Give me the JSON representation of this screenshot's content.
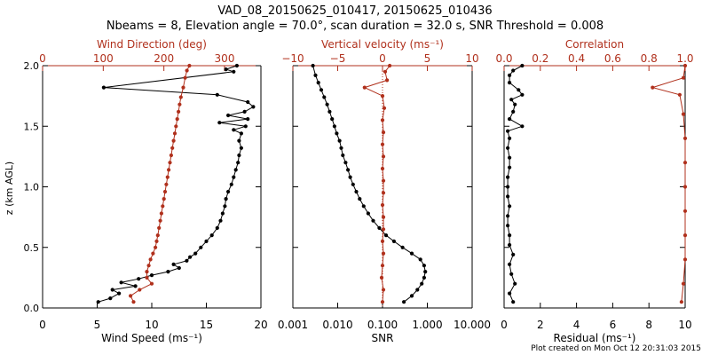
{
  "header": {
    "title_line1": "VAD_08_20150625_010417, 20150625_010436",
    "title_line2": "Nbeams = 8, Elevation angle = 70.0°, scan duration = 32.0 s, SNR Threshold = 0.008"
  },
  "footer": {
    "created": "Plot created on Mon Oct 12 20:31:03 2015"
  },
  "colors": {
    "primary": "#000000",
    "secondary": "#b0301c"
  },
  "y_axis": {
    "label": "z (km AGL)",
    "ticks": [
      "0.0",
      "0.5",
      "1.0",
      "1.5",
      "2.0"
    ],
    "range": [
      0,
      2.0
    ]
  },
  "chart_data": [
    {
      "type": "line",
      "title": "",
      "xlabel": "Wind Speed (ms⁻¹)",
      "xlim": [
        0,
        20
      ],
      "xticks": [
        0,
        5,
        10,
        15,
        20
      ],
      "xtick_labels": [
        "0",
        "5",
        "10",
        "15",
        "20"
      ],
      "top_label": "Wind Direction (deg)",
      "top_lim": [
        0,
        360
      ],
      "top_ticks": [
        0,
        100,
        200,
        300
      ],
      "top_tick_labels": [
        "0",
        "100",
        "200",
        "300"
      ],
      "series": [
        {
          "name": "",
          "axis": "bottom",
          "color": "#000000",
          "points": [
            [
              5.1,
              0.05
            ],
            [
              6.2,
              0.08
            ],
            [
              7.0,
              0.12
            ],
            [
              6.4,
              0.15
            ],
            [
              8.5,
              0.18
            ],
            [
              7.2,
              0.21
            ],
            [
              8.8,
              0.24
            ],
            [
              10.0,
              0.27
            ],
            [
              11.5,
              0.3
            ],
            [
              12.5,
              0.33
            ],
            [
              12.0,
              0.36
            ],
            [
              13.2,
              0.39
            ],
            [
              13.5,
              0.42
            ],
            [
              14.0,
              0.45
            ],
            [
              14.5,
              0.5
            ],
            [
              15.0,
              0.55
            ],
            [
              15.5,
              0.6
            ],
            [
              16.0,
              0.66
            ],
            [
              16.3,
              0.72
            ],
            [
              16.5,
              0.78
            ],
            [
              16.7,
              0.84
            ],
            [
              16.8,
              0.9
            ],
            [
              17.0,
              0.96
            ],
            [
              17.3,
              1.02
            ],
            [
              17.5,
              1.08
            ],
            [
              17.7,
              1.14
            ],
            [
              17.9,
              1.2
            ],
            [
              18.0,
              1.26
            ],
            [
              18.2,
              1.32
            ],
            [
              18.0,
              1.38
            ],
            [
              18.2,
              1.44
            ],
            [
              17.5,
              1.47
            ],
            [
              18.6,
              1.5
            ],
            [
              16.2,
              1.53
            ],
            [
              18.8,
              1.56
            ],
            [
              17.0,
              1.59
            ],
            [
              18.5,
              1.62
            ],
            [
              19.3,
              1.66
            ],
            [
              18.8,
              1.7
            ],
            [
              16.0,
              1.76
            ],
            [
              5.6,
              1.82
            ],
            [
              17.5,
              1.95
            ],
            [
              16.8,
              1.97
            ],
            [
              17.8,
              2.0
            ]
          ]
        },
        {
          "name": "",
          "axis": "top",
          "color": "#b0301c",
          "points": [
            [
              150,
              0.05
            ],
            [
              145,
              0.1
            ],
            [
              160,
              0.15
            ],
            [
              180,
              0.2
            ],
            [
              172,
              0.25
            ],
            [
              172,
              0.3
            ],
            [
              175,
              0.35
            ],
            [
              178,
              0.4
            ],
            [
              182,
              0.45
            ],
            [
              186,
              0.5
            ],
            [
              188,
              0.55
            ],
            [
              190,
              0.6
            ],
            [
              192,
              0.66
            ],
            [
              194,
              0.72
            ],
            [
              196,
              0.78
            ],
            [
              198,
              0.84
            ],
            [
              200,
              0.9
            ],
            [
              202,
              0.96
            ],
            [
              204,
              1.02
            ],
            [
              206,
              1.08
            ],
            [
              208,
              1.14
            ],
            [
              210,
              1.2
            ],
            [
              212,
              1.26
            ],
            [
              214,
              1.32
            ],
            [
              216,
              1.38
            ],
            [
              218,
              1.44
            ],
            [
              220,
              1.5
            ],
            [
              222,
              1.56
            ],
            [
              224,
              1.62
            ],
            [
              226,
              1.68
            ],
            [
              228,
              1.74
            ],
            [
              232,
              1.82
            ],
            [
              235,
              1.9
            ],
            [
              238,
              1.96
            ],
            [
              242,
              2.0
            ]
          ]
        }
      ]
    },
    {
      "type": "line",
      "title": "",
      "xlabel": "SNR",
      "xscale": "log",
      "xlim": [
        0.001,
        10
      ],
      "xticks": [
        0.001,
        0.01,
        0.1,
        1,
        10
      ],
      "xtick_labels": [
        "0.001",
        "0.010",
        "0.100",
        "1.000",
        "10.000"
      ],
      "top_label": "Vertical velocity (ms⁻¹)",
      "top_lim": [
        -10,
        10
      ],
      "top_ticks": [
        -10,
        -5,
        0,
        5,
        10
      ],
      "top_tick_labels": [
        "−10",
        "−5",
        "0",
        "5",
        "10"
      ],
      "series": [
        {
          "name": "",
          "axis": "bottom",
          "color": "#000000",
          "points": [
            [
              0.3,
              0.05
            ],
            [
              0.45,
              0.1
            ],
            [
              0.6,
              0.15
            ],
            [
              0.75,
              0.2
            ],
            [
              0.85,
              0.25
            ],
            [
              0.9,
              0.3
            ],
            [
              0.85,
              0.35
            ],
            [
              0.7,
              0.4
            ],
            [
              0.45,
              0.45
            ],
            [
              0.28,
              0.5
            ],
            [
              0.18,
              0.55
            ],
            [
              0.12,
              0.6
            ],
            [
              0.085,
              0.66
            ],
            [
              0.062,
              0.72
            ],
            [
              0.048,
              0.78
            ],
            [
              0.038,
              0.84
            ],
            [
              0.031,
              0.9
            ],
            [
              0.026,
              0.96
            ],
            [
              0.022,
              1.02
            ],
            [
              0.019,
              1.08
            ],
            [
              0.017,
              1.14
            ],
            [
              0.015,
              1.2
            ],
            [
              0.013,
              1.26
            ],
            [
              0.012,
              1.32
            ],
            [
              0.011,
              1.38
            ],
            [
              0.0095,
              1.44
            ],
            [
              0.0085,
              1.5
            ],
            [
              0.0075,
              1.56
            ],
            [
              0.0066,
              1.62
            ],
            [
              0.0058,
              1.68
            ],
            [
              0.005,
              1.74
            ],
            [
              0.0043,
              1.8
            ],
            [
              0.0037,
              1.86
            ],
            [
              0.0032,
              1.92
            ],
            [
              0.0028,
              2.0
            ]
          ]
        },
        {
          "name": "",
          "axis": "top",
          "color": "#b0301c",
          "points": [
            [
              0.0,
              0.05
            ],
            [
              0.1,
              0.15
            ],
            [
              -0.1,
              0.25
            ],
            [
              0.0,
              0.35
            ],
            [
              0.1,
              0.45
            ],
            [
              0.0,
              0.55
            ],
            [
              0.1,
              0.65
            ],
            [
              0.1,
              0.75
            ],
            [
              0.0,
              0.85
            ],
            [
              0.1,
              0.95
            ],
            [
              0.1,
              1.05
            ],
            [
              0.0,
              1.15
            ],
            [
              0.1,
              1.25
            ],
            [
              0.0,
              1.35
            ],
            [
              0.1,
              1.45
            ],
            [
              0.0,
              1.55
            ],
            [
              0.2,
              1.65
            ],
            [
              0.0,
              1.75
            ],
            [
              -2.0,
              1.82
            ],
            [
              0.5,
              1.88
            ],
            [
              0.3,
              1.95
            ],
            [
              0.8,
              2.0
            ]
          ]
        }
      ]
    },
    {
      "type": "line",
      "title": "",
      "xlabel": "Residual (ms⁻¹)",
      "xlim": [
        0,
        10
      ],
      "xticks": [
        0,
        2,
        4,
        6,
        8,
        10
      ],
      "xtick_labels": [
        "0",
        "2",
        "4",
        "6",
        "8",
        "10"
      ],
      "top_label": "Correlation",
      "top_lim": [
        0,
        1.0
      ],
      "top_ticks": [
        0,
        0.2,
        0.4,
        0.6,
        0.8,
        1.0
      ],
      "top_tick_labels": [
        "0.0",
        "0.2",
        "0.4",
        "0.6",
        "0.8",
        "1.0"
      ],
      "series": [
        {
          "name": "",
          "axis": "bottom",
          "color": "#000000",
          "points": [
            [
              0.5,
              0.05
            ],
            [
              0.3,
              0.12
            ],
            [
              0.6,
              0.2
            ],
            [
              0.4,
              0.28
            ],
            [
              0.3,
              0.36
            ],
            [
              0.5,
              0.44
            ],
            [
              0.3,
              0.52
            ],
            [
              0.3,
              0.6
            ],
            [
              0.2,
              0.68
            ],
            [
              0.2,
              0.76
            ],
            [
              0.3,
              0.84
            ],
            [
              0.2,
              0.92
            ],
            [
              0.2,
              1.0
            ],
            [
              0.2,
              1.08
            ],
            [
              0.3,
              1.16
            ],
            [
              0.3,
              1.24
            ],
            [
              0.2,
              1.32
            ],
            [
              0.3,
              1.4
            ],
            [
              0.2,
              1.46
            ],
            [
              1.0,
              1.5
            ],
            [
              0.3,
              1.56
            ],
            [
              0.5,
              1.62
            ],
            [
              0.6,
              1.68
            ],
            [
              0.4,
              1.72
            ],
            [
              1.0,
              1.76
            ],
            [
              0.8,
              1.8
            ],
            [
              0.3,
              1.86
            ],
            [
              0.3,
              1.92
            ],
            [
              0.5,
              1.96
            ],
            [
              1.0,
              2.0
            ]
          ]
        },
        {
          "name": "",
          "axis": "top",
          "color": "#b0301c",
          "points": [
            [
              0.98,
              0.05
            ],
            [
              0.99,
              0.2
            ],
            [
              1.0,
              0.4
            ],
            [
              1.0,
              0.6
            ],
            [
              1.0,
              0.8
            ],
            [
              1.0,
              1.0
            ],
            [
              1.0,
              1.2
            ],
            [
              1.0,
              1.4
            ],
            [
              0.99,
              1.6
            ],
            [
              0.97,
              1.76
            ],
            [
              0.82,
              1.82
            ],
            [
              0.99,
              1.9
            ],
            [
              1.0,
              2.0
            ]
          ]
        }
      ]
    }
  ]
}
